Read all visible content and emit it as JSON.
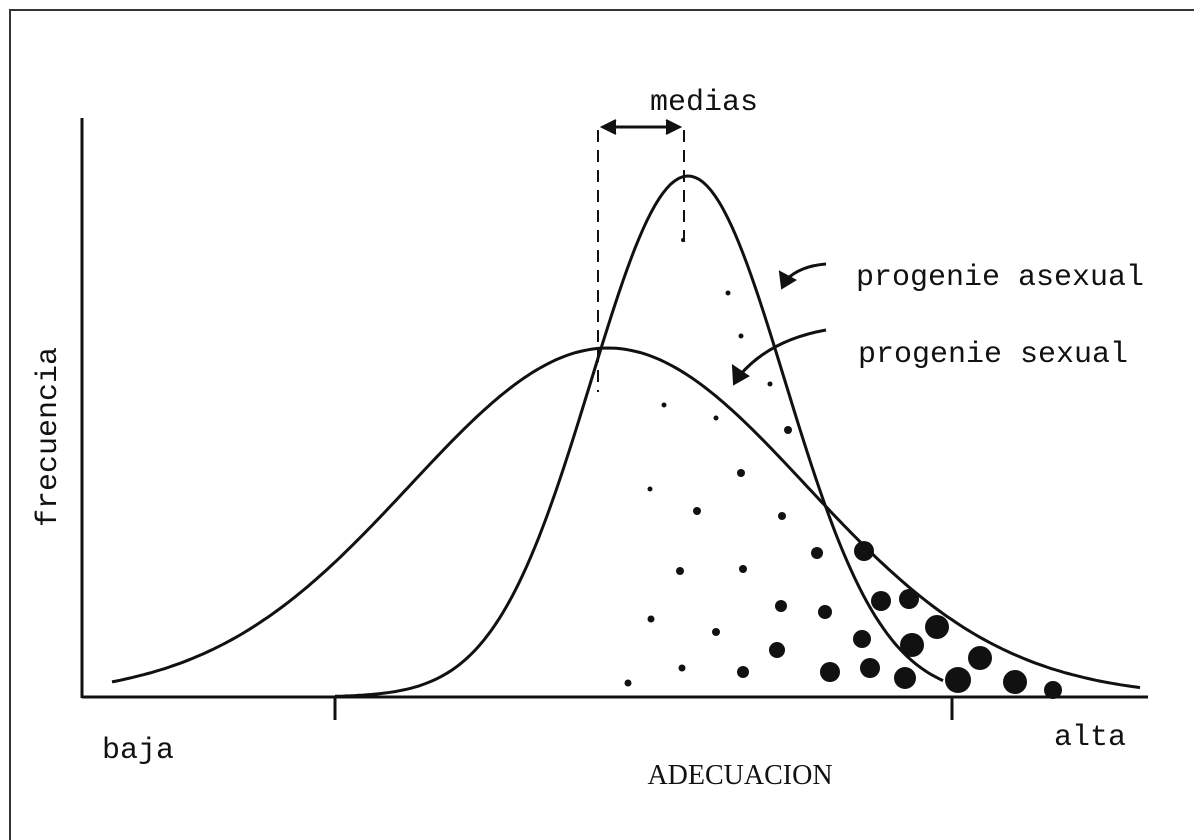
{
  "labels": {
    "means": "medias",
    "asexual": "progenie asexual",
    "sexual": "progenie sexual",
    "y_axis": "frecuencia",
    "low": "baja",
    "x_axis": "ADECUACION",
    "high": "alta"
  }
}
